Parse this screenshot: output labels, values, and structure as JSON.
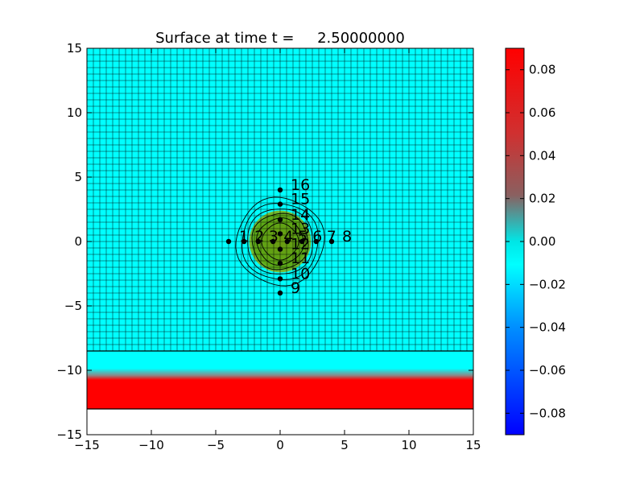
{
  "chart_data": {
    "type": "heatmap",
    "title": "Surface at time t =     2.50000000",
    "xlabel": "",
    "ylabel": "",
    "xlim": [
      -15,
      15
    ],
    "ylim": [
      -15,
      15
    ],
    "x_ticks": [
      "−15",
      "−10",
      "−5",
      "0",
      "5",
      "10",
      "15"
    ],
    "x_tick_values": [
      -15,
      -10,
      -5,
      0,
      5,
      10,
      15
    ],
    "y_ticks": [
      "−15",
      "−10",
      "−5",
      "0",
      "5",
      "10",
      "15"
    ],
    "y_tick_values": [
      -15,
      -10,
      -5,
      0,
      5,
      10,
      15
    ],
    "grid": true,
    "grid_cell_size": 0.5,
    "mesh_region": {
      "x": [
        -15,
        15
      ],
      "y": [
        -8.5,
        15
      ]
    },
    "shelf_region": {
      "x": [
        -15,
        15
      ],
      "y": [
        -13,
        -8.5
      ]
    },
    "colorbar": {
      "range": [
        -0.09,
        0.09
      ],
      "ticks": [
        0.08,
        0.06,
        0.04,
        0.02,
        0.0,
        -0.02,
        -0.04,
        -0.06,
        -0.08
      ],
      "tick_labels": [
        "0.08",
        "0.06",
        "0.04",
        "0.02",
        "0.00",
        "−0.02",
        "−0.04",
        "−0.06",
        "−0.08"
      ]
    },
    "hump": {
      "center": [
        0,
        0
      ],
      "radius": 2.4,
      "max_level": 0.04
    },
    "contour_radii": [
      1.4,
      1.8,
      2.2,
      2.6,
      3.0,
      3.4
    ],
    "gauges": [
      {
        "id": "1",
        "x": -4.0,
        "y": 0
      },
      {
        "id": "2",
        "x": -2.8,
        "y": 0
      },
      {
        "id": "3",
        "x": -1.7,
        "y": 0
      },
      {
        "id": "4",
        "x": -0.55,
        "y": 0
      },
      {
        "id": "5",
        "x": 0.55,
        "y": 0
      },
      {
        "id": "6",
        "x": 1.7,
        "y": 0
      },
      {
        "id": "7",
        "x": 2.8,
        "y": 0
      },
      {
        "id": "8",
        "x": 4.0,
        "y": 0
      },
      {
        "id": "9",
        "x": 0,
        "y": -4.0
      },
      {
        "id": "10",
        "x": 0,
        "y": -2.9
      },
      {
        "id": "11",
        "x": 0,
        "y": -1.7
      },
      {
        "id": "12",
        "x": 0,
        "y": -0.6
      },
      {
        "id": "13",
        "x": 0,
        "y": 0.6
      },
      {
        "id": "14",
        "x": 0,
        "y": 1.7
      },
      {
        "id": "15",
        "x": 0,
        "y": 2.9
      },
      {
        "id": "16",
        "x": 0,
        "y": 4.0
      }
    ],
    "colors": {
      "water": "#00ffff",
      "shelf_top": "#00ffff",
      "shelf_bottom": "#ff0000",
      "hump": "#5aa818",
      "grid_line": "#000000"
    }
  }
}
